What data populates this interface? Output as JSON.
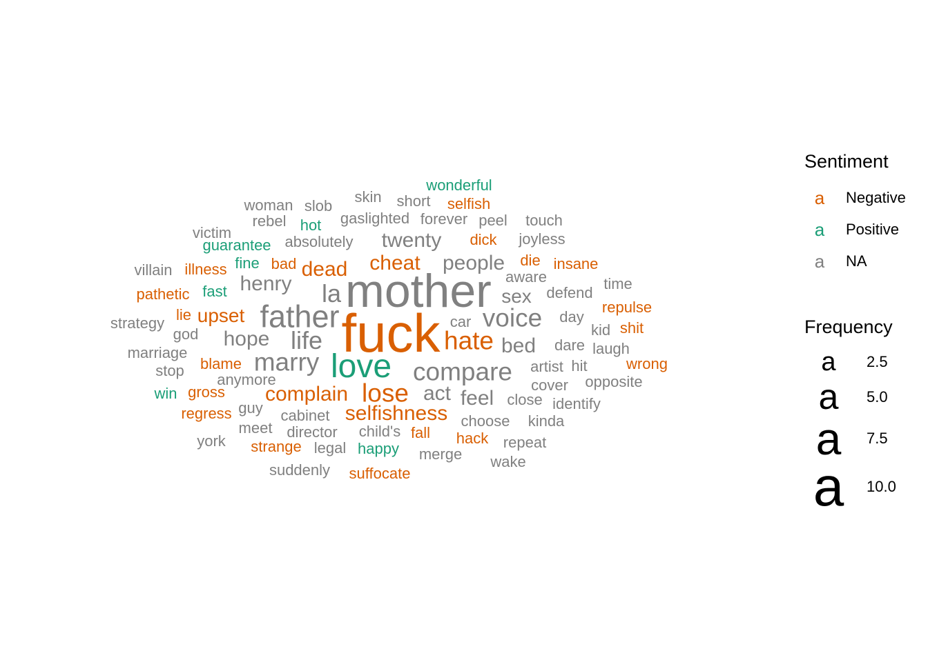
{
  "chart_data": {
    "type": "wordcloud",
    "colors": {
      "Negative": "#D95F02",
      "Positive": "#1B9E77",
      "NA": "#808080"
    },
    "legend": {
      "sentiment_title": "Sentiment",
      "sentiment_key_glyph": "a",
      "sentiment_items": [
        {
          "label": "Negative",
          "sentiment": "Negative"
        },
        {
          "label": "Positive",
          "sentiment": "Positive"
        },
        {
          "label": "NA",
          "sentiment": "NA"
        }
      ],
      "frequency_title": "Frequency",
      "frequency_key_glyph": "a",
      "frequency_items": [
        {
          "label": "2.5",
          "value": 2.5
        },
        {
          "label": "5.0",
          "value": 5.0
        },
        {
          "label": "7.5",
          "value": 7.5
        },
        {
          "label": "10.0",
          "value": 10.0
        }
      ]
    },
    "words": [
      {
        "word": "fuck",
        "sentiment": "Negative",
        "freq": 11
      },
      {
        "word": "mother",
        "sentiment": "NA",
        "freq": 10
      },
      {
        "word": "love",
        "sentiment": "Positive",
        "freq": 6
      },
      {
        "word": "father",
        "sentiment": "NA",
        "freq": 6
      },
      {
        "word": "marry",
        "sentiment": "NA",
        "freq": 5
      },
      {
        "word": "compare",
        "sentiment": "NA",
        "freq": 5
      },
      {
        "word": "hate",
        "sentiment": "Negative",
        "freq": 5
      },
      {
        "word": "lose",
        "sentiment": "Negative",
        "freq": 5
      },
      {
        "word": "voice",
        "sentiment": "NA",
        "freq": 5
      },
      {
        "word": "life",
        "sentiment": "NA",
        "freq": 4
      },
      {
        "word": "la",
        "sentiment": "NA",
        "freq": 4
      },
      {
        "word": "cheat",
        "sentiment": "Negative",
        "freq": 4
      },
      {
        "word": "people",
        "sentiment": "NA",
        "freq": 4
      },
      {
        "word": "dead",
        "sentiment": "Negative",
        "freq": 4
      },
      {
        "word": "henry",
        "sentiment": "NA",
        "freq": 4
      },
      {
        "word": "upset",
        "sentiment": "Negative",
        "freq": 4
      },
      {
        "word": "hope",
        "sentiment": "NA",
        "freq": 4
      },
      {
        "word": "complain",
        "sentiment": "Negative",
        "freq": 4
      },
      {
        "word": "selfishness",
        "sentiment": "Negative",
        "freq": 4
      },
      {
        "word": "act",
        "sentiment": "NA",
        "freq": 4
      },
      {
        "word": "feel",
        "sentiment": "NA",
        "freq": 4
      },
      {
        "word": "bed",
        "sentiment": "NA",
        "freq": 4
      },
      {
        "word": "twenty",
        "sentiment": "NA",
        "freq": 4
      },
      {
        "word": "sex",
        "sentiment": "NA",
        "freq": 3
      },
      {
        "word": "wonderful",
        "sentiment": "Positive",
        "freq": 2
      },
      {
        "word": "skin",
        "sentiment": "NA",
        "freq": 2
      },
      {
        "word": "short",
        "sentiment": "NA",
        "freq": 2
      },
      {
        "word": "selfish",
        "sentiment": "Negative",
        "freq": 2
      },
      {
        "word": "woman",
        "sentiment": "NA",
        "freq": 2
      },
      {
        "word": "slob",
        "sentiment": "NA",
        "freq": 2
      },
      {
        "word": "rebel",
        "sentiment": "NA",
        "freq": 2
      },
      {
        "word": "hot",
        "sentiment": "Positive",
        "freq": 2
      },
      {
        "word": "gaslighted",
        "sentiment": "NA",
        "freq": 2
      },
      {
        "word": "forever",
        "sentiment": "NA",
        "freq": 2
      },
      {
        "word": "peel",
        "sentiment": "NA",
        "freq": 2
      },
      {
        "word": "touch",
        "sentiment": "NA",
        "freq": 2
      },
      {
        "word": "victim",
        "sentiment": "NA",
        "freq": 2
      },
      {
        "word": "guarantee",
        "sentiment": "Positive",
        "freq": 2
      },
      {
        "word": "absolutely",
        "sentiment": "NA",
        "freq": 2
      },
      {
        "word": "dick",
        "sentiment": "Negative",
        "freq": 2
      },
      {
        "word": "joyless",
        "sentiment": "NA",
        "freq": 2
      },
      {
        "word": "villain",
        "sentiment": "NA",
        "freq": 2
      },
      {
        "word": "illness",
        "sentiment": "Negative",
        "freq": 2
      },
      {
        "word": "fine",
        "sentiment": "Positive",
        "freq": 2
      },
      {
        "word": "bad",
        "sentiment": "Negative",
        "freq": 2
      },
      {
        "word": "die",
        "sentiment": "Negative",
        "freq": 2
      },
      {
        "word": "insane",
        "sentiment": "Negative",
        "freq": 2
      },
      {
        "word": "aware",
        "sentiment": "NA",
        "freq": 2
      },
      {
        "word": "time",
        "sentiment": "NA",
        "freq": 2
      },
      {
        "word": "pathetic",
        "sentiment": "Negative",
        "freq": 2
      },
      {
        "word": "fast",
        "sentiment": "Positive",
        "freq": 2
      },
      {
        "word": "defend",
        "sentiment": "NA",
        "freq": 2
      },
      {
        "word": "repulse",
        "sentiment": "Negative",
        "freq": 2
      },
      {
        "word": "strategy",
        "sentiment": "NA",
        "freq": 2
      },
      {
        "word": "lie",
        "sentiment": "Negative",
        "freq": 2
      },
      {
        "word": "car",
        "sentiment": "NA",
        "freq": 2
      },
      {
        "word": "day",
        "sentiment": "NA",
        "freq": 2
      },
      {
        "word": "kid",
        "sentiment": "NA",
        "freq": 2
      },
      {
        "word": "shit",
        "sentiment": "Negative",
        "freq": 2
      },
      {
        "word": "god",
        "sentiment": "NA",
        "freq": 2
      },
      {
        "word": "dare",
        "sentiment": "NA",
        "freq": 2
      },
      {
        "word": "laugh",
        "sentiment": "NA",
        "freq": 2
      },
      {
        "word": "marriage",
        "sentiment": "NA",
        "freq": 2
      },
      {
        "word": "blame",
        "sentiment": "Negative",
        "freq": 2
      },
      {
        "word": "artist",
        "sentiment": "NA",
        "freq": 2
      },
      {
        "word": "hit",
        "sentiment": "NA",
        "freq": 2
      },
      {
        "word": "wrong",
        "sentiment": "Negative",
        "freq": 2
      },
      {
        "word": "stop",
        "sentiment": "NA",
        "freq": 2
      },
      {
        "word": "anymore",
        "sentiment": "NA",
        "freq": 2
      },
      {
        "word": "cover",
        "sentiment": "NA",
        "freq": 2
      },
      {
        "word": "opposite",
        "sentiment": "NA",
        "freq": 2
      },
      {
        "word": "win",
        "sentiment": "Positive",
        "freq": 2
      },
      {
        "word": "gross",
        "sentiment": "Negative",
        "freq": 2
      },
      {
        "word": "close",
        "sentiment": "NA",
        "freq": 2
      },
      {
        "word": "identify",
        "sentiment": "NA",
        "freq": 2
      },
      {
        "word": "regress",
        "sentiment": "Negative",
        "freq": 2
      },
      {
        "word": "guy",
        "sentiment": "NA",
        "freq": 2
      },
      {
        "word": "cabinet",
        "sentiment": "NA",
        "freq": 2
      },
      {
        "word": "choose",
        "sentiment": "NA",
        "freq": 2
      },
      {
        "word": "kinda",
        "sentiment": "NA",
        "freq": 2
      },
      {
        "word": "meet",
        "sentiment": "NA",
        "freq": 2
      },
      {
        "word": "director",
        "sentiment": "NA",
        "freq": 2
      },
      {
        "word": "child's",
        "sentiment": "NA",
        "freq": 2
      },
      {
        "word": "fall",
        "sentiment": "Negative",
        "freq": 2
      },
      {
        "word": "hack",
        "sentiment": "Negative",
        "freq": 2
      },
      {
        "word": "york",
        "sentiment": "NA",
        "freq": 2
      },
      {
        "word": "strange",
        "sentiment": "Negative",
        "freq": 2
      },
      {
        "word": "legal",
        "sentiment": "NA",
        "freq": 2
      },
      {
        "word": "happy",
        "sentiment": "Positive",
        "freq": 2
      },
      {
        "word": "repeat",
        "sentiment": "NA",
        "freq": 2
      },
      {
        "word": "merge",
        "sentiment": "NA",
        "freq": 2
      },
      {
        "word": "wake",
        "sentiment": "NA",
        "freq": 2
      },
      {
        "word": "suddenly",
        "sentiment": "NA",
        "freq": 2
      },
      {
        "word": "suffocate",
        "sentiment": "Negative",
        "freq": 2
      }
    ]
  }
}
